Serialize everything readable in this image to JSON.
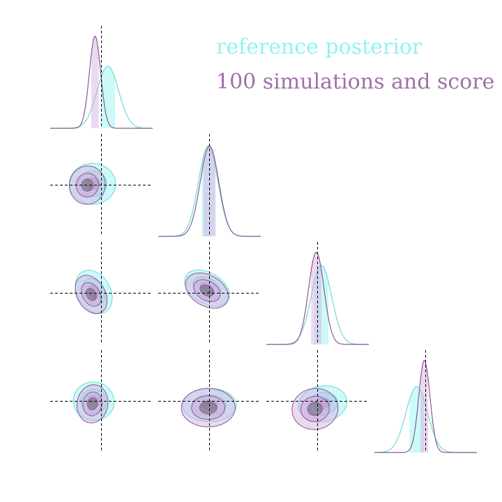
{
  "chart_data": {
    "type": "corner",
    "title": "",
    "dimensions": 4,
    "reference_lines": [
      0.0,
      0.0,
      0.0,
      0.0
    ],
    "legend": {
      "placement": "top-right",
      "entries": [
        {
          "label": "reference posterior",
          "color": "#8ef4f0"
        },
        {
          "label": "100 simulations and score",
          "color": "#a070a8"
        }
      ]
    },
    "series": [
      {
        "name": "reference posterior",
        "fill": "#8ef4f0",
        "stroke": "#6fd8d4",
        "marginals": [
          {
            "mean": 0.25,
            "sd": 0.42,
            "peak": 0.66
          },
          {
            "mean": -0.05,
            "sd": 0.38,
            "peak": 0.96
          },
          {
            "mean": 0.15,
            "sd": 0.4,
            "peak": 0.84
          },
          {
            "mean": -0.35,
            "sd": 0.42,
            "peak": 0.7
          }
        ]
      },
      {
        "name": "100 simulations and score",
        "fill": "#d8a8e0",
        "stroke": "#8a5a90",
        "marginals": [
          {
            "mean": -0.25,
            "sd": 0.22,
            "peak": 0.98
          },
          {
            "mean": 0.0,
            "sd": 0.36,
            "peak": 0.96
          },
          {
            "mean": -0.05,
            "sd": 0.3,
            "peak": 0.98
          },
          {
            "mean": -0.05,
            "sd": 0.22,
            "peak": 0.98
          }
        ]
      }
    ],
    "pairs": [
      {
        "row": 1,
        "col": 0,
        "ref": {
          "cx": -0.35,
          "cy": 0.05,
          "rx": 0.9,
          "ry": 0.8,
          "rot": 0
        },
        "sim": {
          "cx": -0.55,
          "cy": 0.0,
          "rx": 0.7,
          "ry": 0.75,
          "rot": 10
        }
      },
      {
        "row": 2,
        "col": 0,
        "ref": {
          "cx": -0.3,
          "cy": 0.05,
          "rx": 0.65,
          "ry": 0.9,
          "rot": -30
        },
        "sim": {
          "cx": -0.4,
          "cy": -0.05,
          "rx": 0.55,
          "ry": 0.8,
          "rot": -30
        }
      },
      {
        "row": 2,
        "col": 1,
        "ref": {
          "cx": -0.1,
          "cy": 0.2,
          "rx": 0.95,
          "ry": 0.6,
          "rot": 30
        },
        "sim": {
          "cx": -0.1,
          "cy": 0.1,
          "rx": 0.9,
          "ry": 0.6,
          "rot": 30
        }
      },
      {
        "row": 3,
        "col": 0,
        "ref": {
          "cx": -0.3,
          "cy": 0.0,
          "rx": 0.8,
          "ry": 0.75,
          "rot": 10
        },
        "sim": {
          "cx": -0.35,
          "cy": -0.1,
          "rx": 0.6,
          "ry": 0.75,
          "rot": 10
        }
      },
      {
        "row": 3,
        "col": 1,
        "ref": {
          "cx": 0.0,
          "cy": -0.15,
          "rx": 1.05,
          "ry": 0.65,
          "rot": 0
        },
        "sim": {
          "cx": -0.05,
          "cy": -0.25,
          "rx": 1.05,
          "ry": 0.75,
          "rot": 0
        }
      },
      {
        "row": 3,
        "col": 2,
        "ref": {
          "cx": 0.2,
          "cy": -0.1,
          "rx": 0.95,
          "ry": 0.7,
          "rot": -10
        },
        "sim": {
          "cx": -0.1,
          "cy": -0.3,
          "rx": 0.9,
          "ry": 0.8,
          "rot": -10
        }
      }
    ],
    "grid": false,
    "axes_visible": false
  }
}
